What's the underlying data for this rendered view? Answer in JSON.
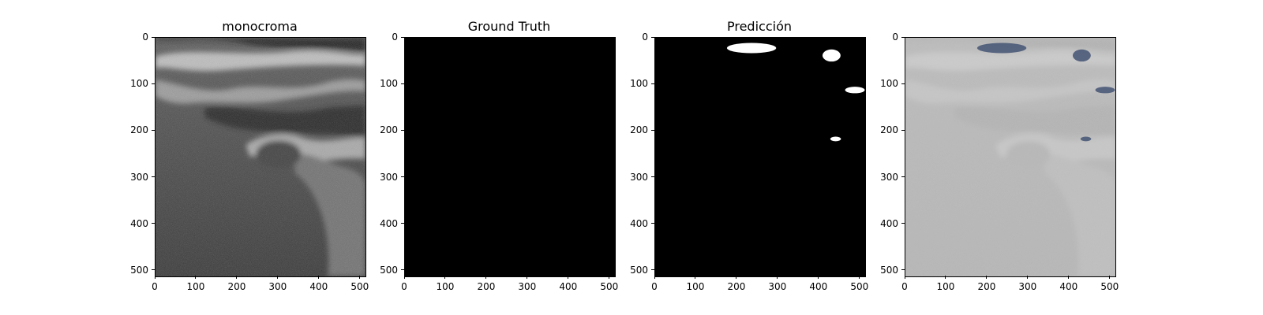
{
  "panels": [
    {
      "title": "monocroma",
      "kind": "ultrasound"
    },
    {
      "title": "Ground Truth",
      "kind": "black"
    },
    {
      "title": "Predicción",
      "kind": "mask"
    },
    {
      "title": "",
      "kind": "overlay"
    }
  ],
  "axes": {
    "x_ticks": [
      "0",
      "100",
      "200",
      "300",
      "400",
      "500"
    ],
    "y_ticks": [
      "0",
      "100",
      "200",
      "300",
      "400",
      "500"
    ],
    "x_range": [
      0,
      512
    ],
    "y_range": [
      0,
      512
    ]
  },
  "colors": {
    "mask": "#ffffff",
    "overlay_mask": "#4b5a78",
    "ground_truth": "#000000"
  },
  "mask_blobs": [
    {
      "cx": 235,
      "cy": 22,
      "rx": 60,
      "ry": 11
    },
    {
      "cx": 430,
      "cy": 38,
      "rx": 22,
      "ry": 13
    },
    {
      "cx": 487,
      "cy": 112,
      "rx": 24,
      "ry": 7
    },
    {
      "cx": 440,
      "cy": 217,
      "rx": 13,
      "ry": 5
    }
  ]
}
